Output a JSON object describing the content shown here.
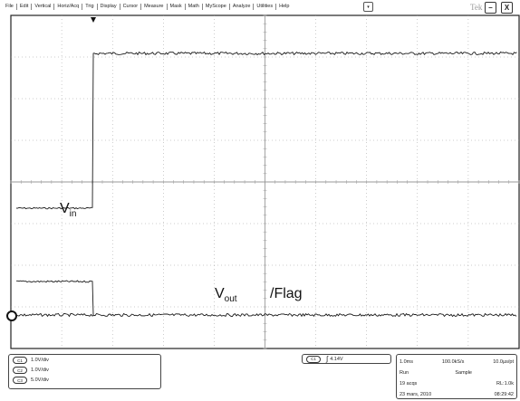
{
  "menu": {
    "items": [
      "File",
      "Edit",
      "Vertical",
      "Horiz/Acq",
      "Trig",
      "Display",
      "Cursor",
      "Measure",
      "Mask",
      "Math",
      "MyScope",
      "Analyze",
      "Utilities",
      "Help"
    ],
    "dropdown_icon": "chevron-down-icon",
    "dropdown_glyph": "▾"
  },
  "brand": "Tek",
  "window": {
    "minimize_label": "–",
    "close_label": "X"
  },
  "colors": {
    "trace": "#1a1a1a",
    "grid": "#9a9a9a",
    "background": "#ffffff"
  },
  "waveforms": {
    "vin_label": "V",
    "vin_sub": "in",
    "vout_label": "V",
    "vout_sub": "out",
    "flag_label": "/Flag"
  },
  "channels": [
    {
      "id": "C1",
      "scale": "1.0V/div"
    },
    {
      "id": "C2",
      "scale": "1.0V/div"
    },
    {
      "id": "C3",
      "scale": "5.0V/div"
    }
  ],
  "trigger": {
    "channel": "C1",
    "slope_icon": "rising-edge-icon",
    "slope_glyph": "∫",
    "level": "4.14V"
  },
  "acquisition": {
    "timebase": "1.0ms",
    "sample_rate": "100.0kS/s",
    "resolution": "10.0µs/pt",
    "state": "Run",
    "mode": "Sample",
    "acqs": "19 acqs",
    "record_length": "RL:1.0k",
    "date": "23 mars, 2010",
    "time": "08:29:42"
  }
}
